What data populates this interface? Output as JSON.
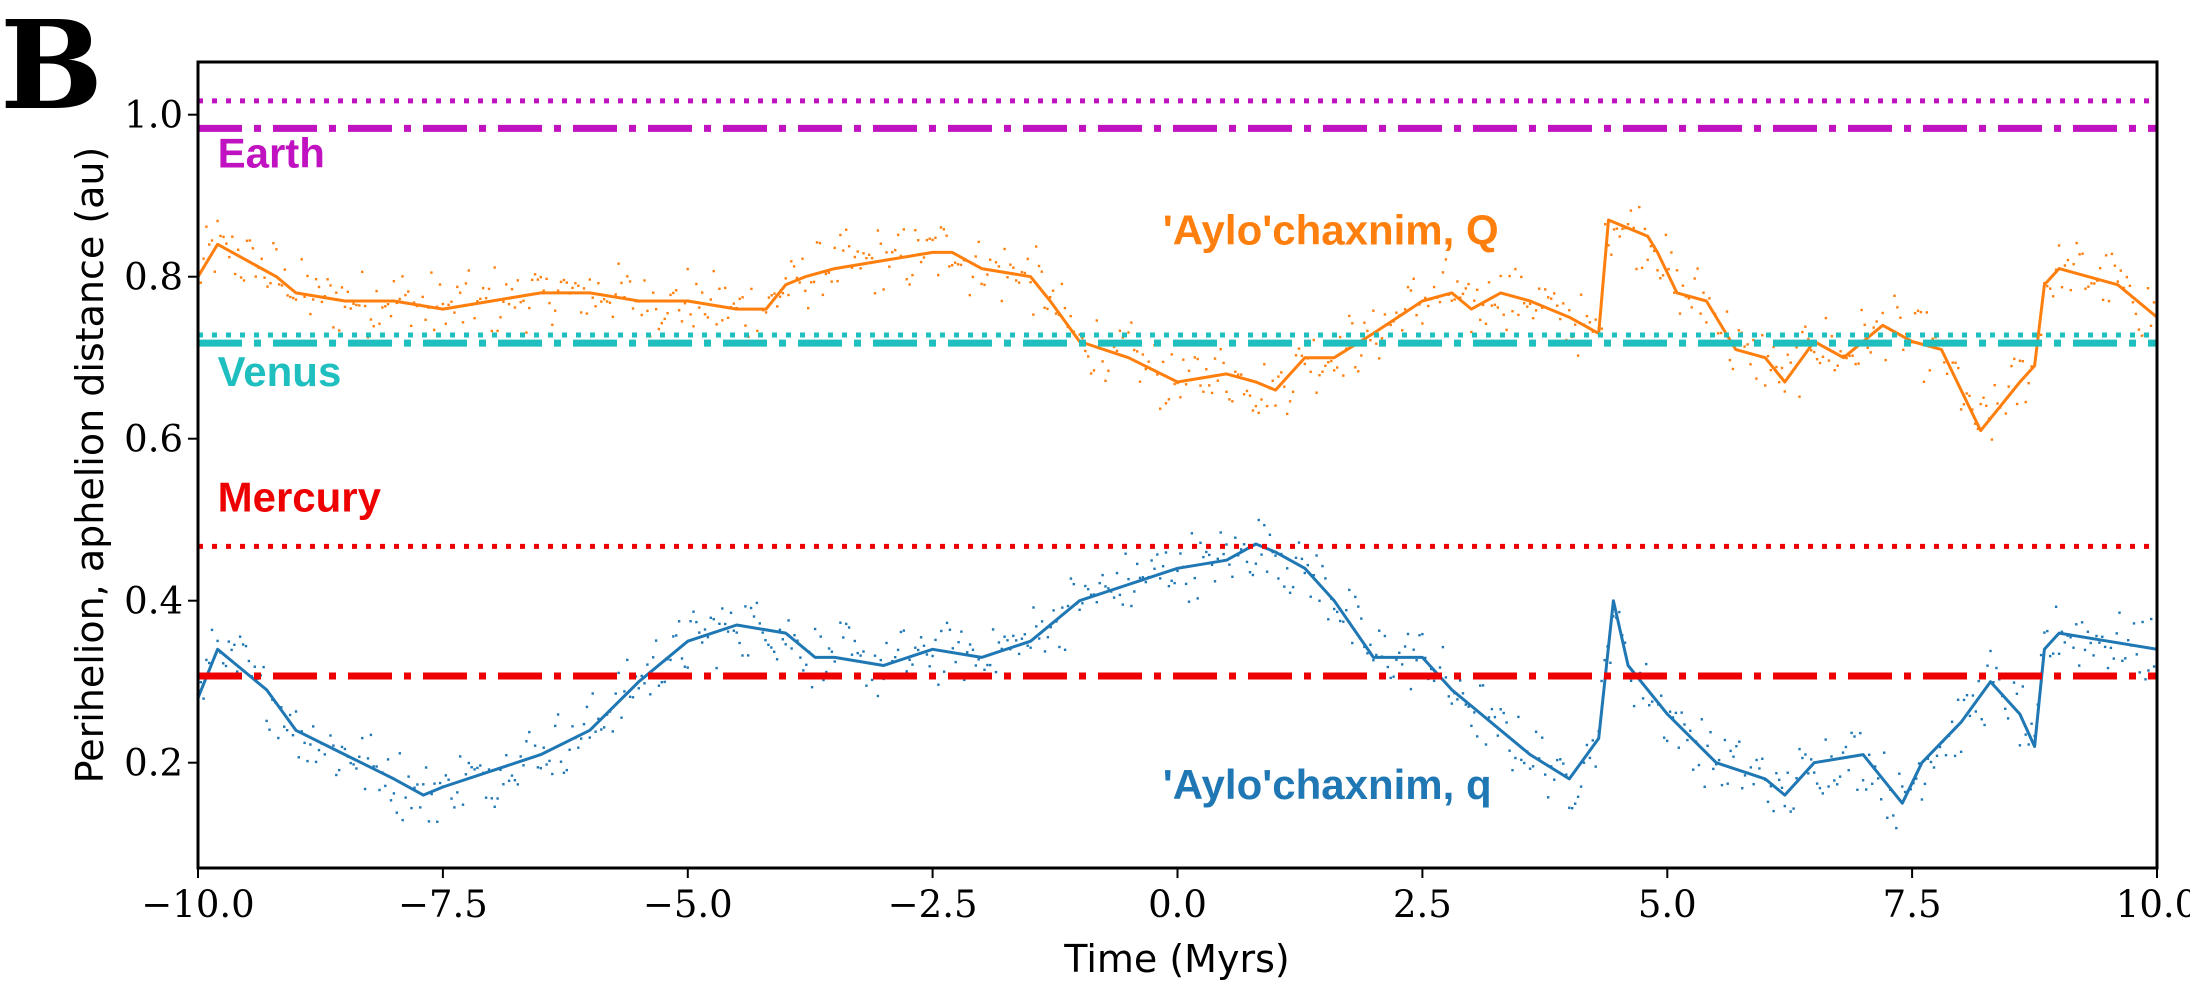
{
  "panel_label": "B",
  "colors": {
    "earth": "#c012c0",
    "venus": "#1fbfbf",
    "mercury": "#ee0000",
    "aphelion": "#ff7f0e",
    "perihelion": "#1f77b4"
  },
  "chart_data": {
    "type": "scatter",
    "title": "",
    "xlabel": "Time (Myrs)",
    "ylabel": "Perihelion, aphelion distance (au)",
    "xlim": [
      -10.0,
      10.0
    ],
    "ylim": [
      0.07,
      1.065
    ],
    "x_ticks": [
      -10.0,
      -7.5,
      -5.0,
      -2.5,
      0.0,
      2.5,
      5.0,
      7.5,
      10.0
    ],
    "x_tick_labels": [
      "−10.0",
      "−7.5",
      "−5.0",
      "−2.5",
      "0.0",
      "2.5",
      "5.0",
      "7.5",
      "10.0"
    ],
    "y_ticks": [
      0.2,
      0.4,
      0.6,
      0.8,
      1.0
    ],
    "y_tick_labels": [
      "0.2",
      "0.4",
      "0.6",
      "0.8",
      "1.0"
    ],
    "reference_lines": [
      {
        "planet": "Earth",
        "quantity": "aphelion",
        "y": 1.017,
        "style": "dotted",
        "color": "#c012c0"
      },
      {
        "planet": "Earth",
        "quantity": "perihelion",
        "y": 0.983,
        "style": "dashdot",
        "color": "#c012c0"
      },
      {
        "planet": "Venus",
        "quantity": "aphelion",
        "y": 0.728,
        "style": "dotted",
        "color": "#1fbfbf"
      },
      {
        "planet": "Venus",
        "quantity": "perihelion",
        "y": 0.718,
        "style": "dashdot",
        "color": "#1fbfbf"
      },
      {
        "planet": "Mercury",
        "quantity": "aphelion",
        "y": 0.467,
        "style": "dotted",
        "color": "#ee0000"
      },
      {
        "planet": "Mercury",
        "quantity": "perihelion",
        "y": 0.307,
        "style": "dashdot",
        "color": "#ee0000"
      }
    ],
    "annotations": [
      {
        "text": "Earth",
        "x": -9.8,
        "y": 0.935,
        "color": "#c012c0"
      },
      {
        "text": "Venus",
        "x": -9.8,
        "y": 0.665,
        "color": "#1fbfbf"
      },
      {
        "text": "Mercury",
        "x": -9.8,
        "y": 0.51,
        "color": "#ee0000"
      },
      {
        "text": "'Aylo'chaxnim, Q",
        "x": -0.15,
        "y": 0.84,
        "color": "#ff7f0e"
      },
      {
        "text": "'Aylo'chaxnim, q",
        "x": -0.15,
        "y": 0.155,
        "color": "#1f77b4"
      }
    ],
    "series": [
      {
        "name": "'Aylo'chaxnim, Q",
        "color": "#ff7f0e",
        "x": [
          -10.0,
          -9.8,
          -9.5,
          -9.2,
          -9.0,
          -8.5,
          -8.0,
          -7.5,
          -7.0,
          -6.5,
          -6.0,
          -5.5,
          -5.0,
          -4.5,
          -4.2,
          -4.0,
          -3.8,
          -3.5,
          -3.0,
          -2.5,
          -2.3,
          -2.0,
          -1.5,
          -1.3,
          -1.0,
          -0.5,
          0.0,
          0.5,
          0.8,
          1.0,
          1.3,
          1.6,
          2.0,
          2.5,
          2.8,
          3.0,
          3.3,
          3.6,
          4.0,
          4.3,
          4.4,
          4.6,
          4.8,
          4.9,
          5.1,
          5.4,
          5.7,
          6.0,
          6.2,
          6.5,
          6.8,
          7.2,
          7.5,
          7.8,
          8.0,
          8.2,
          8.4,
          8.6,
          8.75,
          8.85,
          9.0,
          9.3,
          9.6,
          10.0
        ],
        "values": [
          0.8,
          0.84,
          0.82,
          0.8,
          0.78,
          0.77,
          0.77,
          0.76,
          0.77,
          0.78,
          0.78,
          0.77,
          0.77,
          0.76,
          0.76,
          0.79,
          0.8,
          0.81,
          0.82,
          0.83,
          0.83,
          0.81,
          0.8,
          0.77,
          0.72,
          0.7,
          0.67,
          0.68,
          0.67,
          0.66,
          0.7,
          0.7,
          0.73,
          0.77,
          0.78,
          0.76,
          0.78,
          0.77,
          0.75,
          0.73,
          0.87,
          0.86,
          0.85,
          0.83,
          0.78,
          0.77,
          0.71,
          0.7,
          0.67,
          0.72,
          0.7,
          0.74,
          0.72,
          0.71,
          0.66,
          0.61,
          0.64,
          0.67,
          0.69,
          0.79,
          0.81,
          0.8,
          0.79,
          0.75
        ]
      },
      {
        "name": "'Aylo'chaxnim, q",
        "color": "#1f77b4",
        "x": [
          -10.0,
          -9.8,
          -9.6,
          -9.3,
          -9.0,
          -8.5,
          -8.0,
          -7.7,
          -7.5,
          -7.0,
          -6.5,
          -6.0,
          -5.5,
          -5.0,
          -4.5,
          -4.0,
          -3.7,
          -3.5,
          -3.0,
          -2.5,
          -2.0,
          -1.5,
          -1.0,
          -0.5,
          0.0,
          0.5,
          0.8,
          1.0,
          1.3,
          1.6,
          2.0,
          2.5,
          2.8,
          3.0,
          3.3,
          3.6,
          4.0,
          4.3,
          4.45,
          4.6,
          5.0,
          5.5,
          6.0,
          6.2,
          6.5,
          7.0,
          7.4,
          7.6,
          8.0,
          8.3,
          8.6,
          8.75,
          8.85,
          9.0,
          9.5,
          10.0
        ],
        "values": [
          0.28,
          0.34,
          0.32,
          0.29,
          0.24,
          0.21,
          0.18,
          0.16,
          0.17,
          0.19,
          0.21,
          0.24,
          0.3,
          0.35,
          0.37,
          0.36,
          0.33,
          0.33,
          0.32,
          0.34,
          0.33,
          0.35,
          0.4,
          0.42,
          0.44,
          0.45,
          0.47,
          0.46,
          0.44,
          0.4,
          0.33,
          0.33,
          0.29,
          0.27,
          0.24,
          0.21,
          0.18,
          0.23,
          0.4,
          0.32,
          0.26,
          0.2,
          0.18,
          0.16,
          0.2,
          0.21,
          0.15,
          0.2,
          0.25,
          0.3,
          0.26,
          0.22,
          0.34,
          0.36,
          0.35,
          0.34
        ]
      }
    ]
  }
}
